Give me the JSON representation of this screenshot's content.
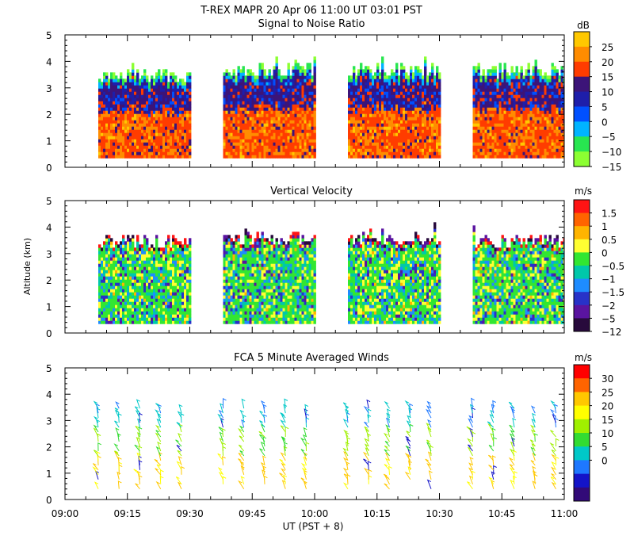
{
  "header": {
    "title": "T-REX  MAPR 20 Apr 06  11:00 UT  03:01  PST"
  },
  "chart_data": [
    {
      "type": "heatmap",
      "title": "Signal to Noise Ratio",
      "ylabel": "",
      "ylim": [
        0,
        5
      ],
      "y_ticks": [
        "0",
        "1",
        "2",
        "3",
        "4",
        "5"
      ],
      "unit": "dB",
      "colorbar_labels": [
        "25",
        "20",
        "15",
        "10",
        "5",
        "0",
        "−5",
        "−10",
        "−15"
      ],
      "colorbar_colors": [
        "#ffc800",
        "#ff8c00",
        "#ff3c00",
        "#3c1478",
        "#1e1eaa",
        "#0050ff",
        "#00b4ff",
        "#28e650",
        "#8cff32"
      ],
      "data_segments": [
        {
          "start": "09:08",
          "end": "09:30",
          "top_km": 3.4
        },
        {
          "start": "09:38",
          "end": "10:00",
          "top_km": 3.6
        },
        {
          "start": "10:08",
          "end": "10:30",
          "top_km": 3.6
        },
        {
          "start": "10:38",
          "end": "11:00",
          "top_km": 3.6
        }
      ],
      "data_floor_km": 0.35
    },
    {
      "type": "heatmap",
      "title": "Vertical Velocity",
      "ylabel": "Altitude (km)",
      "ylim": [
        0,
        5
      ],
      "y_ticks": [
        "0",
        "1",
        "2",
        "3",
        "4",
        "5"
      ],
      "unit": "m/s",
      "colorbar_labels": [
        "1.5",
        "1",
        "0.5",
        "0",
        "−0.5",
        "−1",
        "−1.5",
        "−2",
        "−5",
        "−12"
      ],
      "colorbar_colors": [
        "#ff1414",
        "#ff6400",
        "#ffb400",
        "#ffff32",
        "#32e632",
        "#00c8aa",
        "#1e8cff",
        "#2832c8",
        "#5a14a0",
        "#280a3c"
      ],
      "data_segments": [
        {
          "start": "09:08",
          "end": "09:30",
          "top_km": 3.4
        },
        {
          "start": "09:38",
          "end": "10:00",
          "top_km": 3.5
        },
        {
          "start": "10:08",
          "end": "10:30",
          "top_km": 3.5
        },
        {
          "start": "10:38",
          "end": "11:00",
          "top_km": 3.4
        }
      ],
      "data_floor_km": 0.35
    },
    {
      "type": "scatter",
      "title": "FCA 5 Minute Averaged Winds",
      "ylabel": "",
      "ylim": [
        0,
        5
      ],
      "y_ticks": [
        "0",
        "1",
        "2",
        "3",
        "4",
        "5"
      ],
      "unit": "m/s",
      "colorbar_labels": [
        "30",
        "25",
        "20",
        "15",
        "10",
        "5",
        "0"
      ],
      "colorbar_colors": [
        "#ff0000",
        "#ff6400",
        "#ffc800",
        "#ffff00",
        "#a0f000",
        "#32dc32",
        "#00c8c8",
        "#1e78ff",
        "#1414c8",
        "#320a78"
      ],
      "barb_times": [
        "09:08",
        "09:13",
        "09:18",
        "09:23",
        "09:28",
        "09:38",
        "09:43",
        "09:48",
        "09:53",
        "09:58",
        "10:08",
        "10:13",
        "10:18",
        "10:23",
        "10:28",
        "10:38",
        "10:43",
        "10:48",
        "10:53",
        "10:58"
      ],
      "xlabel": "UT  (PST + 8)",
      "x_ticks": [
        "09:00",
        "09:15",
        "09:30",
        "09:45",
        "10:00",
        "10:15",
        "10:30",
        "10:45",
        "11:00"
      ],
      "xlim": [
        "09:00",
        "11:00"
      ]
    }
  ]
}
